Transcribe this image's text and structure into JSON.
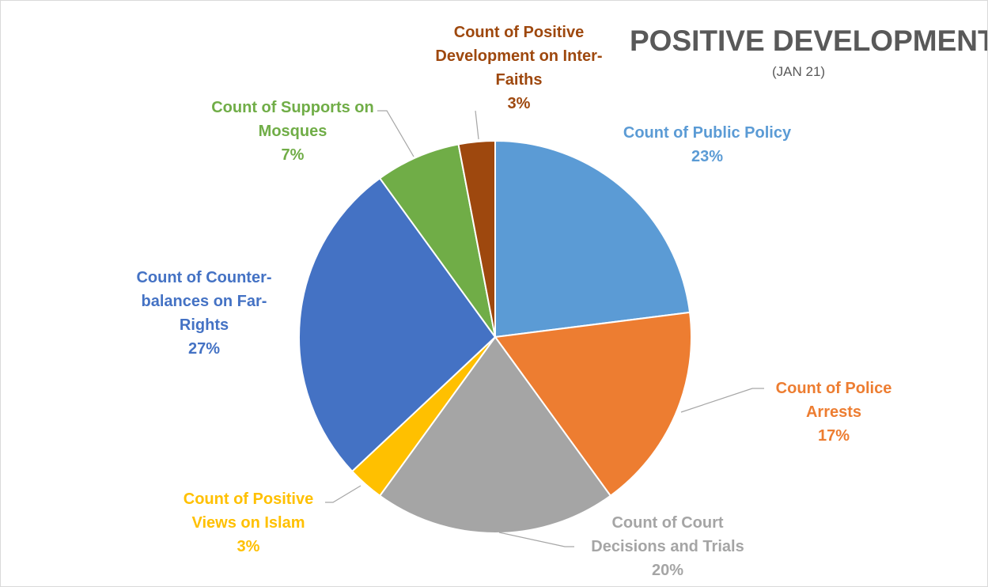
{
  "chart_data": {
    "type": "pie",
    "title": "POSITIVE DEVELOPMENT",
    "subtitle": "(JAN 21)",
    "categories": [
      "Count of Public Policy",
      "Count of Police Arrests",
      "Count of Court Decisions and Trials",
      "Count of Positive Views on Islam",
      "Count of Counter-balances on Far-Rights",
      "Count of Supports on Mosques",
      "Count of Positive Development on Inter-Faiths"
    ],
    "values": [
      23,
      17,
      20,
      3,
      27,
      7,
      3
    ],
    "value_labels": [
      "23%",
      "17%",
      "20%",
      "3%",
      "27%",
      "7%",
      "3%"
    ],
    "colors": [
      "#5b9bd5",
      "#ed7d31",
      "#a5a5a5",
      "#ffc000",
      "#4472c4",
      "#70ad47",
      "#9e480e"
    ]
  }
}
